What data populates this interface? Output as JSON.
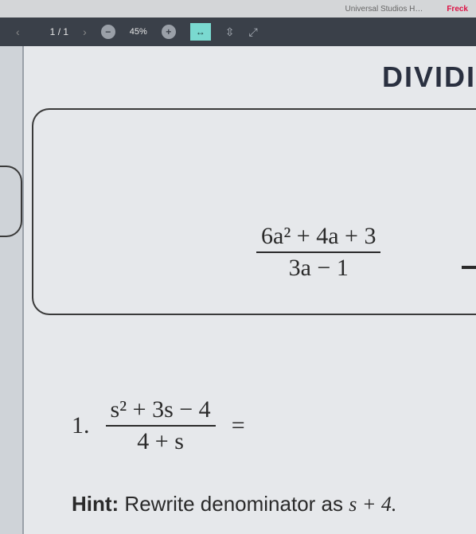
{
  "browser": {
    "tab_middle": "Universal Studios H…",
    "tab_right": "Freck"
  },
  "toolbar": {
    "page_current": "1",
    "page_sep": "/",
    "page_total": "1",
    "zoom_level": "45%",
    "minus_glyph": "−",
    "plus_glyph": "+",
    "fit_glyph": "↔",
    "height_glyph": "⇳",
    "full_glyph": "⤢",
    "background_color": "#3a4049",
    "fit_btn_color": "#7ad9d0"
  },
  "document": {
    "heading": "DIVIDI",
    "example": {
      "numerator": "6a² + 4a + 3",
      "denominator": "3a − 1"
    },
    "problem1": {
      "number": "1.",
      "numerator": "s² + 3s − 4",
      "denominator": "4 + s",
      "equals": "="
    },
    "hint": {
      "label": "Hint:",
      "text": " Rewrite denominator as ",
      "expr": "s + 4."
    },
    "colors": {
      "page_bg": "#e6e8eb",
      "border": "#3a3a3a",
      "text": "#2a2a2a"
    }
  }
}
